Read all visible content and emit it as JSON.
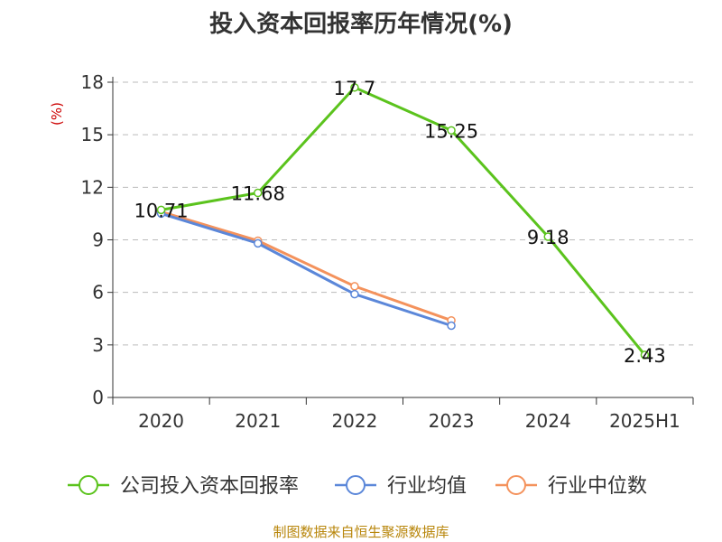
{
  "chart_data": {
    "type": "line",
    "title": "投入资本回报率历年情况(%)",
    "ylabel": "(%)",
    "xlabel": "",
    "categories": [
      "2020",
      "2021",
      "2022",
      "2023",
      "2024",
      "2025H1"
    ],
    "ylim": [
      0,
      18
    ],
    "yticks": [
      0,
      3,
      6,
      9,
      12,
      15,
      18
    ],
    "grid": true,
    "legend_position": "bottom",
    "series": [
      {
        "name": "公司投入资本回报率",
        "color": "#5bc31d",
        "values": [
          10.71,
          11.68,
          17.7,
          15.25,
          9.18,
          2.43
        ],
        "labels": [
          "10.71",
          "11.68",
          "17.7",
          "15.25",
          "9.18",
          "2.43"
        ]
      },
      {
        "name": "行业均值",
        "color": "#5b87d9",
        "values": [
          10.5,
          8.8,
          5.9,
          4.1,
          null,
          null
        ]
      },
      {
        "name": "行业中位数",
        "color": "#f4925c",
        "values": [
          10.6,
          8.95,
          6.35,
          4.4,
          null,
          null
        ]
      }
    ]
  },
  "source_note": "制图数据来自恒生聚源数据库"
}
